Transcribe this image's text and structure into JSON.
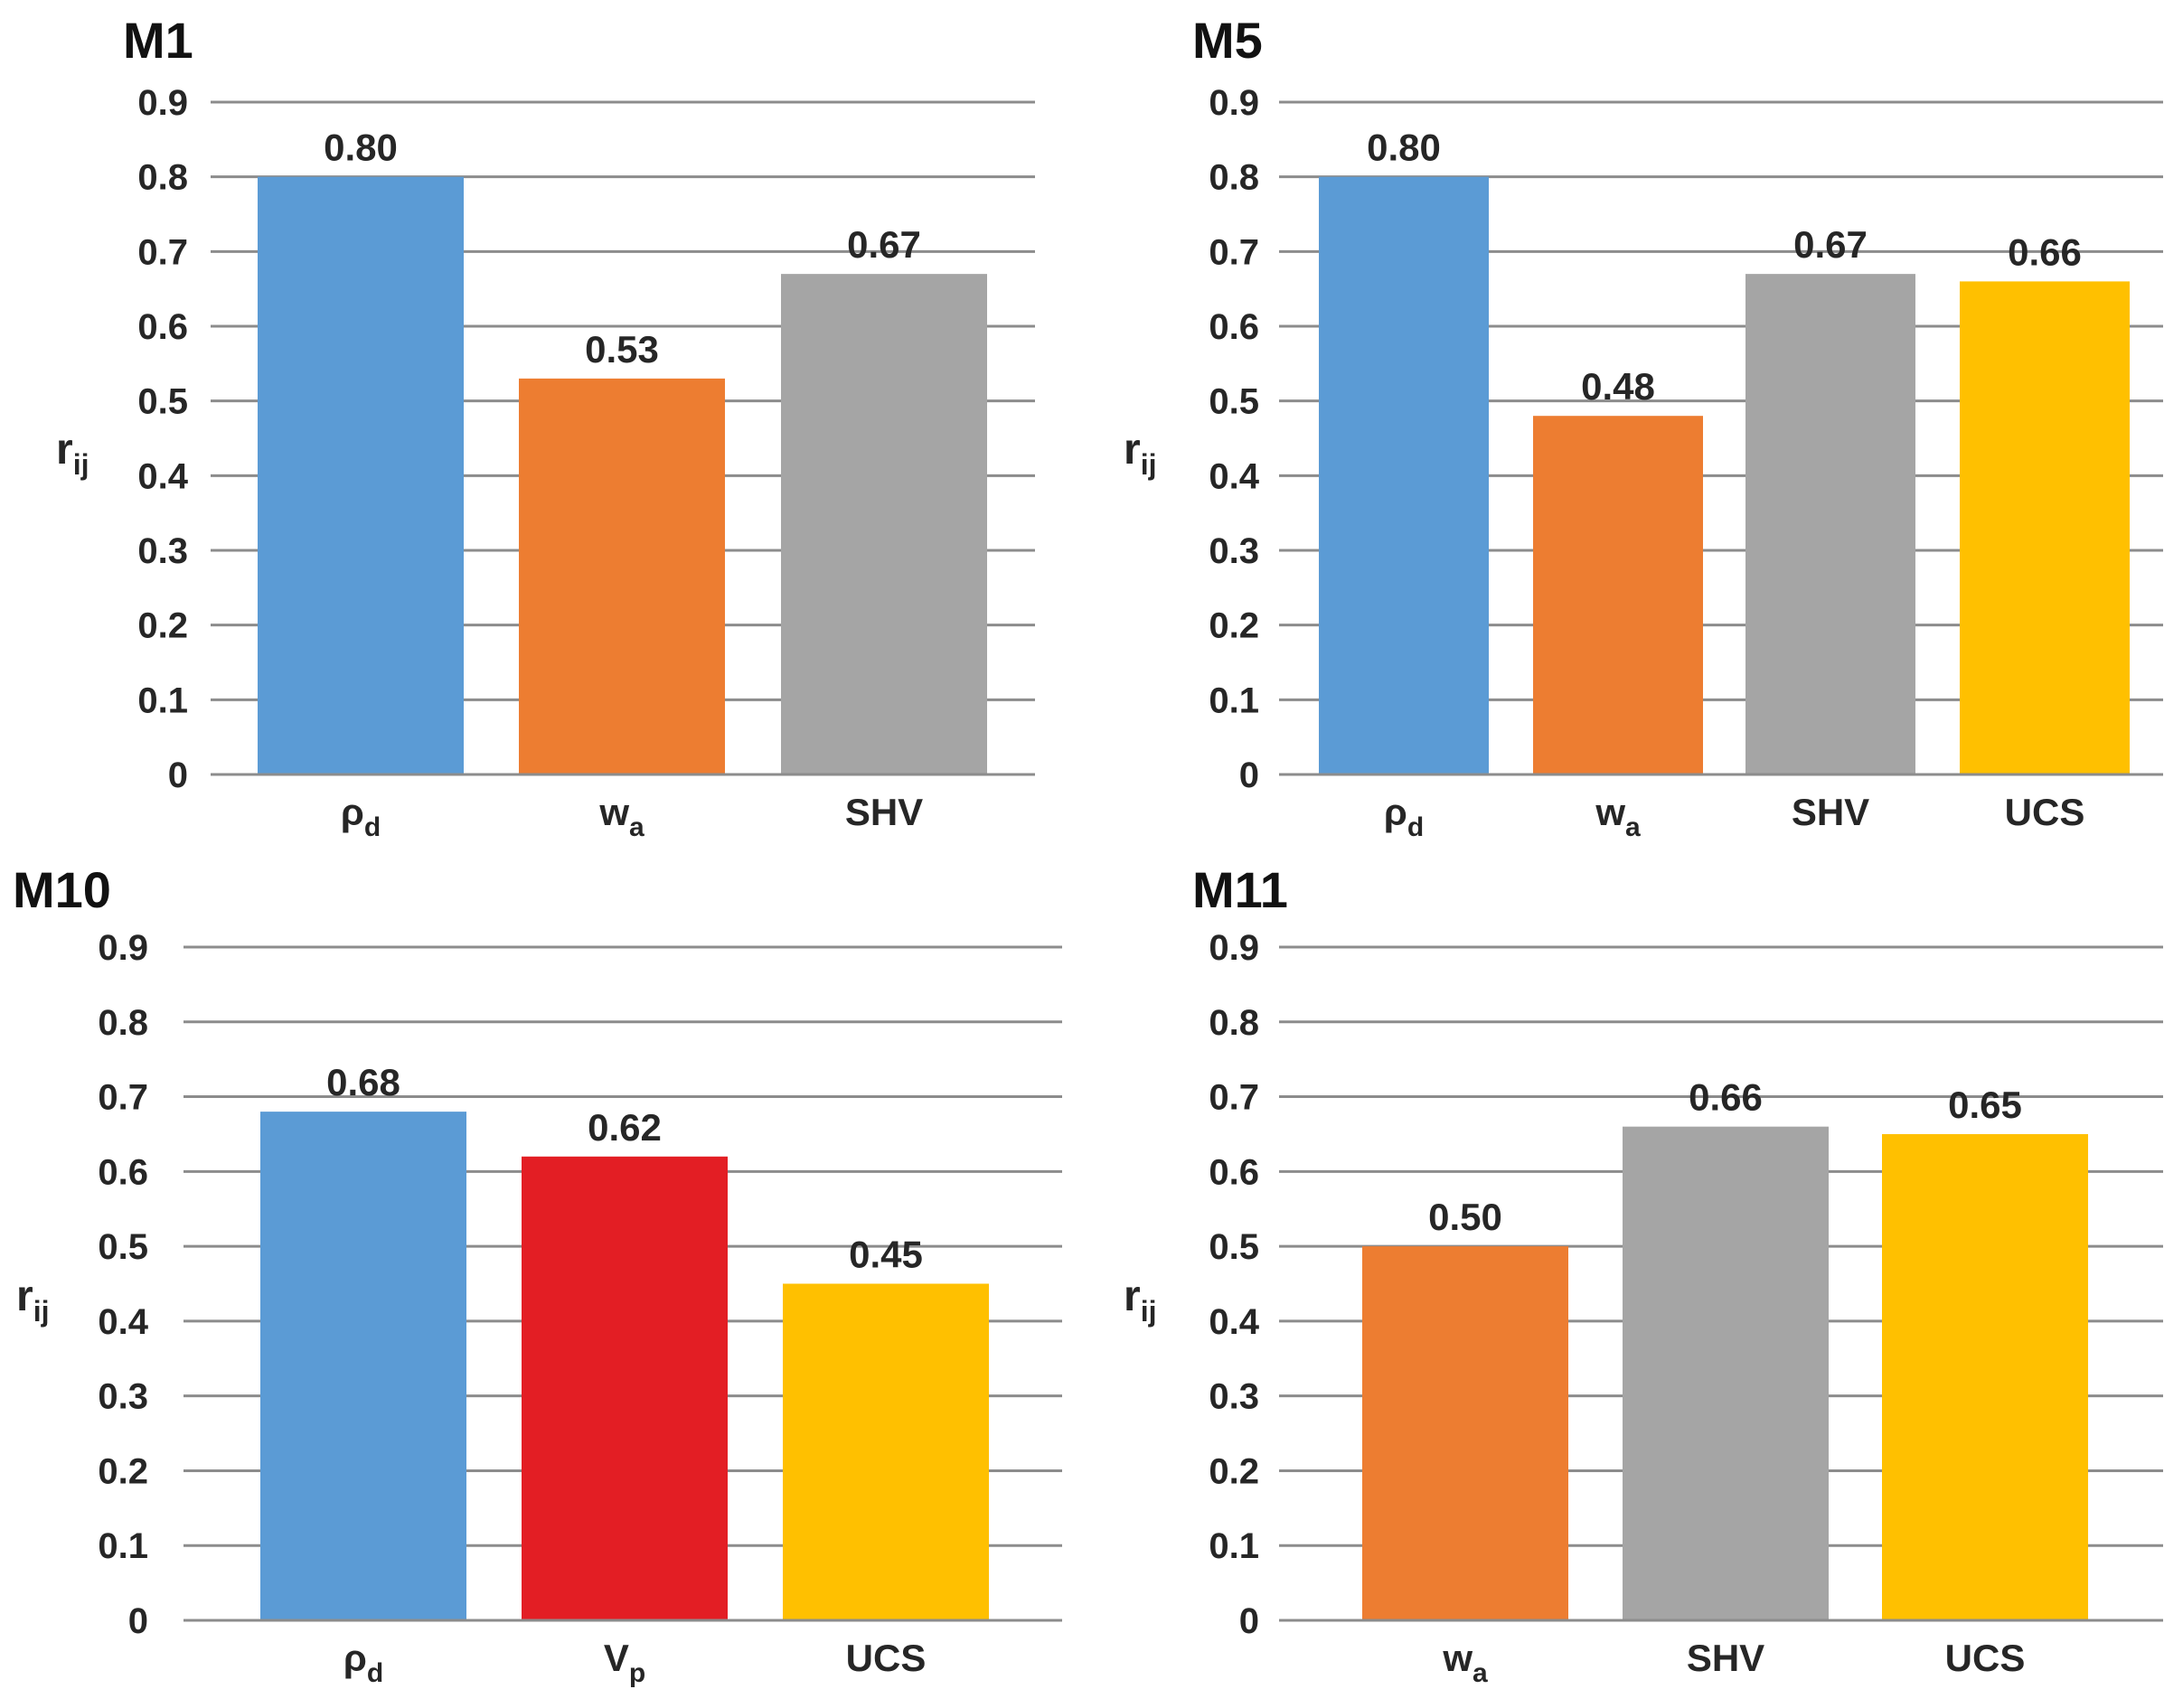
{
  "colors": {
    "blue": "#5b9bd5",
    "orange": "#ed7d31",
    "gray": "#a5a5a5",
    "gold": "#ffc000",
    "red": "#e31e24",
    "grid": "#8c8c8c",
    "text": "#262626"
  },
  "chart_data": [
    {
      "type": "bar",
      "title": "M1",
      "ylabel": "r",
      "ylabel_sub": "ij",
      "ylim": [
        0,
        0.9
      ],
      "yticks": [
        "0",
        "0.1",
        "0.2",
        "0.3",
        "0.4",
        "0.5",
        "0.6",
        "0.7",
        "0.8",
        "0.9"
      ],
      "grid": true,
      "categories": [
        {
          "label": "ρ",
          "sub": "d",
          "color": "blue"
        },
        {
          "label": "w",
          "sub": "a",
          "color": "orange"
        },
        {
          "label": "SHV",
          "sub": "",
          "color": "gray"
        }
      ],
      "values": [
        0.8,
        0.53,
        0.67
      ],
      "data_labels": [
        "0.80",
        "0.53",
        "0.67"
      ]
    },
    {
      "type": "bar",
      "title": "M5",
      "ylabel": "r",
      "ylabel_sub": "ij",
      "ylim": [
        0,
        0.9
      ],
      "yticks": [
        "0",
        "0.1",
        "0.2",
        "0.3",
        "0.4",
        "0.5",
        "0.6",
        "0.7",
        "0.8",
        "0.9"
      ],
      "grid": true,
      "categories": [
        {
          "label": "ρ",
          "sub": "d",
          "color": "blue"
        },
        {
          "label": "w",
          "sub": "a",
          "color": "orange"
        },
        {
          "label": "SHV",
          "sub": "",
          "color": "gray"
        },
        {
          "label": "UCS",
          "sub": "",
          "color": "gold"
        }
      ],
      "values": [
        0.8,
        0.48,
        0.67,
        0.66
      ],
      "data_labels": [
        "0.80",
        "0.48",
        "0.67",
        "0.66"
      ]
    },
    {
      "type": "bar",
      "title": "M10",
      "ylabel": "r",
      "ylabel_sub": "ij",
      "ylim": [
        0,
        0.9
      ],
      "yticks": [
        "0",
        "0.1",
        "0.2",
        "0.3",
        "0.4",
        "0.5",
        "0.6",
        "0.7",
        "0.8",
        "0.9"
      ],
      "grid": true,
      "categories": [
        {
          "label": "ρ",
          "sub": "d",
          "color": "blue"
        },
        {
          "label": "V",
          "sub": "p",
          "color": "red"
        },
        {
          "label": "UCS",
          "sub": "",
          "color": "gold"
        }
      ],
      "values": [
        0.68,
        0.62,
        0.45
      ],
      "data_labels": [
        "0.68",
        "0.62",
        "0.45"
      ]
    },
    {
      "type": "bar",
      "title": "M11",
      "ylabel": "r",
      "ylabel_sub": "ij",
      "ylim": [
        0,
        0.9
      ],
      "yticks": [
        "0",
        "0.1",
        "0.2",
        "0.3",
        "0.4",
        "0.5",
        "0.6",
        "0.7",
        "0.8",
        "0.9"
      ],
      "grid": true,
      "categories": [
        {
          "label": "w",
          "sub": "a",
          "color": "orange"
        },
        {
          "label": "SHV",
          "sub": "",
          "color": "gray"
        },
        {
          "label": "UCS",
          "sub": "",
          "color": "gold"
        }
      ],
      "values": [
        0.5,
        0.66,
        0.65
      ],
      "data_labels": [
        "0.50",
        "0.66",
        "0.65"
      ]
    }
  ]
}
